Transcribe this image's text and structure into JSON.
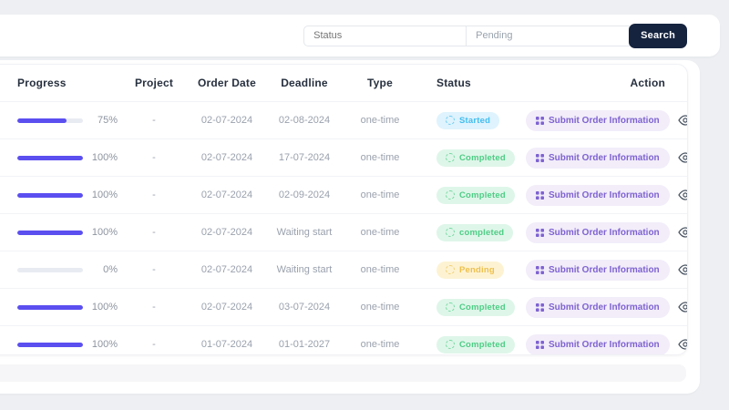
{
  "colors": {
    "page_bg": "#edeff2",
    "progress_fill": "#5b4ff0",
    "progress_track": "#e9ebf2",
    "search_button_bg": "#15233e",
    "status_started": {
      "bg": "#def3fd",
      "text": "#43bdf0"
    },
    "status_completed": {
      "bg": "#def6e9",
      "text": "#4ecd85"
    },
    "status_pending": {
      "bg": "#fdf3d3",
      "text": "#eec04e"
    },
    "action_button": {
      "bg": "#f2edf9",
      "text": "#7e62d1"
    }
  },
  "search": {
    "status_placeholder": "Status",
    "query_value": "Pending",
    "button_label": "Search"
  },
  "table": {
    "columns": [
      "Progress",
      "Project",
      "Order Date",
      "Deadline",
      "Type",
      "Status",
      "Action"
    ],
    "action_button_label": "Submit Order Information",
    "rows": [
      {
        "progress": 75,
        "progress_label": "75%",
        "project": "-",
        "order_date": "02-07-2024",
        "deadline": "02-08-2024",
        "type": "one-time",
        "status": "Started",
        "status_kind": "started"
      },
      {
        "progress": 100,
        "progress_label": "100%",
        "project": "-",
        "order_date": "02-07-2024",
        "deadline": "17-07-2024",
        "type": "one-time",
        "status": "Completed",
        "status_kind": "completed"
      },
      {
        "progress": 100,
        "progress_label": "100%",
        "project": "-",
        "order_date": "02-07-2024",
        "deadline": "02-09-2024",
        "type": "one-time",
        "status": "Completed",
        "status_kind": "completed"
      },
      {
        "progress": 100,
        "progress_label": "100%",
        "project": "-",
        "order_date": "02-07-2024",
        "deadline": "Waiting start",
        "type": "one-time",
        "status": "completed",
        "status_kind": "completed"
      },
      {
        "progress": 0,
        "progress_label": "0%",
        "project": "-",
        "order_date": "02-07-2024",
        "deadline": "Waiting start",
        "type": "one-time",
        "status": "Pending",
        "status_kind": "pending"
      },
      {
        "progress": 100,
        "progress_label": "100%",
        "project": "-",
        "order_date": "02-07-2024",
        "deadline": "03-07-2024",
        "type": "one-time",
        "status": "Completed",
        "status_kind": "completed"
      },
      {
        "progress": 100,
        "progress_label": "100%",
        "project": "-",
        "order_date": "01-07-2024",
        "deadline": "01-01-2027",
        "type": "one-time",
        "status": "Completed",
        "status_kind": "completed"
      }
    ]
  }
}
